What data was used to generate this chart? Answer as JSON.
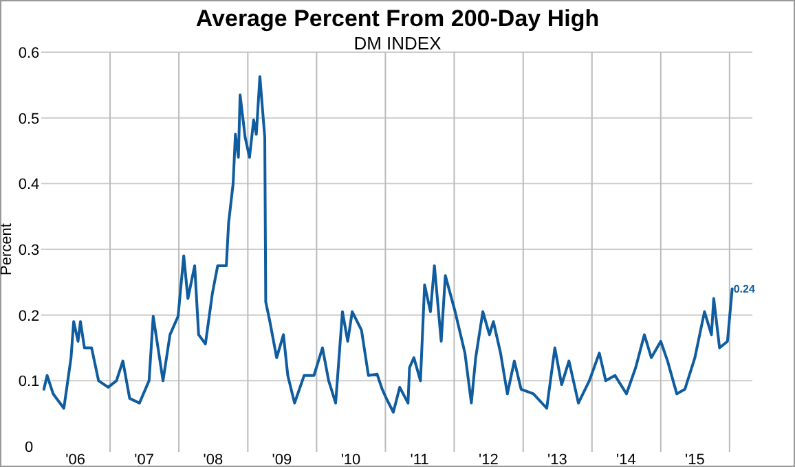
{
  "chart_data": {
    "type": "line",
    "title": "Average Percent From 200-Day High",
    "subtitle": "DM INDEX",
    "ylabel": "Percent",
    "x": [
      "2006-01-15",
      "2006-02-01",
      "2006-03-05",
      "2006-05-01",
      "2006-06-08",
      "2006-06-22",
      "2006-07-15",
      "2006-07-28",
      "2006-08-18",
      "2006-09-25",
      "2006-11-01",
      "2006-12-22",
      "2007-02-04",
      "2007-03-10",
      "2007-04-15",
      "2007-06-06",
      "2007-07-27",
      "2007-08-18",
      "2007-10-09",
      "2007-11-15",
      "2007-12-28",
      "2008-01-27",
      "2008-02-18",
      "2008-03-25",
      "2008-04-15",
      "2008-05-21",
      "2008-06-27",
      "2008-07-25",
      "2008-09-09",
      "2008-09-21",
      "2008-10-15",
      "2008-10-27",
      "2008-11-12",
      "2008-11-21",
      "2008-12-18",
      "2009-01-10",
      "2009-02-01",
      "2009-02-15",
      "2009-03-06",
      "2009-04-01",
      "2009-04-06",
      "2009-04-28",
      "2009-06-03",
      "2009-07-09",
      "2009-08-01",
      "2009-09-06",
      "2009-10-27",
      "2009-12-18",
      "2010-02-01",
      "2010-03-06",
      "2010-04-12",
      "2010-05-18",
      "2010-06-15",
      "2010-07-09",
      "2010-08-27",
      "2010-10-03",
      "2010-11-18",
      "2010-12-15",
      "2011-01-06",
      "2011-02-12",
      "2011-03-18",
      "2011-05-01",
      "2011-05-09",
      "2011-06-01",
      "2011-07-06",
      "2011-07-28",
      "2011-08-28",
      "2011-09-18",
      "2011-10-24",
      "2011-11-15",
      "2012-01-06",
      "2012-02-27",
      "2012-04-01",
      "2012-04-24",
      "2012-06-01",
      "2012-07-06",
      "2012-07-27",
      "2012-09-03",
      "2012-10-09",
      "2012-11-15",
      "2012-12-21",
      "2013-02-24",
      "2013-05-06",
      "2013-06-18",
      "2013-07-24",
      "2013-09-01",
      "2013-10-21",
      "2013-12-18",
      "2014-02-09",
      "2014-03-15",
      "2014-05-03",
      "2014-07-03",
      "2014-08-21",
      "2014-10-06",
      "2014-11-12",
      "2015-01-01",
      "2015-02-06",
      "2015-03-27",
      "2015-05-09",
      "2015-07-01",
      "2015-08-21",
      "2015-09-27",
      "2015-10-09",
      "2015-11-09",
      "2015-12-21",
      "2016-01-15"
    ],
    "series": [
      {
        "color": "#0f5c9f",
        "values": [
          0.087,
          0.108,
          0.08,
          0.058,
          0.135,
          0.19,
          0.16,
          0.19,
          0.15,
          0.15,
          0.1,
          0.09,
          0.1,
          0.13,
          0.073,
          0.066,
          0.1,
          0.198,
          0.1,
          0.17,
          0.198,
          0.29,
          0.225,
          0.275,
          0.17,
          0.156,
          0.233,
          0.275,
          0.275,
          0.34,
          0.4,
          0.475,
          0.44,
          0.535,
          0.47,
          0.44,
          0.497,
          0.475,
          0.563,
          0.47,
          0.22,
          0.19,
          0.135,
          0.17,
          0.108,
          0.066,
          0.108,
          0.108,
          0.15,
          0.1,
          0.066,
          0.205,
          0.16,
          0.205,
          0.177,
          0.108,
          0.11,
          0.087,
          0.073,
          0.052,
          0.09,
          0.066,
          0.12,
          0.135,
          0.1,
          0.246,
          0.205,
          0.275,
          0.16,
          0.26,
          0.205,
          0.142,
          0.066,
          0.135,
          0.205,
          0.17,
          0.19,
          0.142,
          0.08,
          0.13,
          0.087,
          0.08,
          0.058,
          0.15,
          0.094,
          0.13,
          0.066,
          0.1,
          0.142,
          0.1,
          0.108,
          0.08,
          0.12,
          0.17,
          0.135,
          0.16,
          0.13,
          0.08,
          0.087,
          0.135,
          0.205,
          0.17,
          0.225,
          0.15,
          0.16,
          0.24
        ]
      }
    ],
    "xlim": [
      "2006-01-01",
      "2016-05-01"
    ],
    "xticks": [
      {
        "value": "2006-07-01",
        "label": "'06"
      },
      {
        "value": "2007-07-01",
        "label": "'07"
      },
      {
        "value": "2008-07-01",
        "label": "'08"
      },
      {
        "value": "2009-07-01",
        "label": "'09"
      },
      {
        "value": "2010-07-01",
        "label": "'10"
      },
      {
        "value": "2011-07-01",
        "label": "'11"
      },
      {
        "value": "2012-07-01",
        "label": "'12"
      },
      {
        "value": "2013-07-01",
        "label": "'13"
      },
      {
        "value": "2014-07-01",
        "label": "'14"
      },
      {
        "value": "2015-07-01",
        "label": "'15"
      },
      {
        "value": "2007-01-01",
        "label": null
      },
      {
        "value": "2008-01-01",
        "label": null
      },
      {
        "value": "2009-01-01",
        "label": null
      },
      {
        "value": "2010-01-01",
        "label": null
      },
      {
        "value": "2011-01-01",
        "label": null
      },
      {
        "value": "2012-01-01",
        "label": null
      },
      {
        "value": "2013-01-01",
        "label": null
      },
      {
        "value": "2014-01-01",
        "label": null
      },
      {
        "value": "2015-01-01",
        "label": null
      },
      {
        "value": "2016-01-01",
        "label": null
      }
    ],
    "ylim": [
      0,
      0.6
    ],
    "yticks": [
      0,
      0.1,
      0.2,
      0.3,
      0.4,
      0.5,
      0.6
    ],
    "grid": true,
    "marker": "none",
    "line_style": "solid",
    "annotations": [
      {
        "text": "0.24",
        "x": "2016-01-15",
        "y": 0.24
      }
    ]
  }
}
